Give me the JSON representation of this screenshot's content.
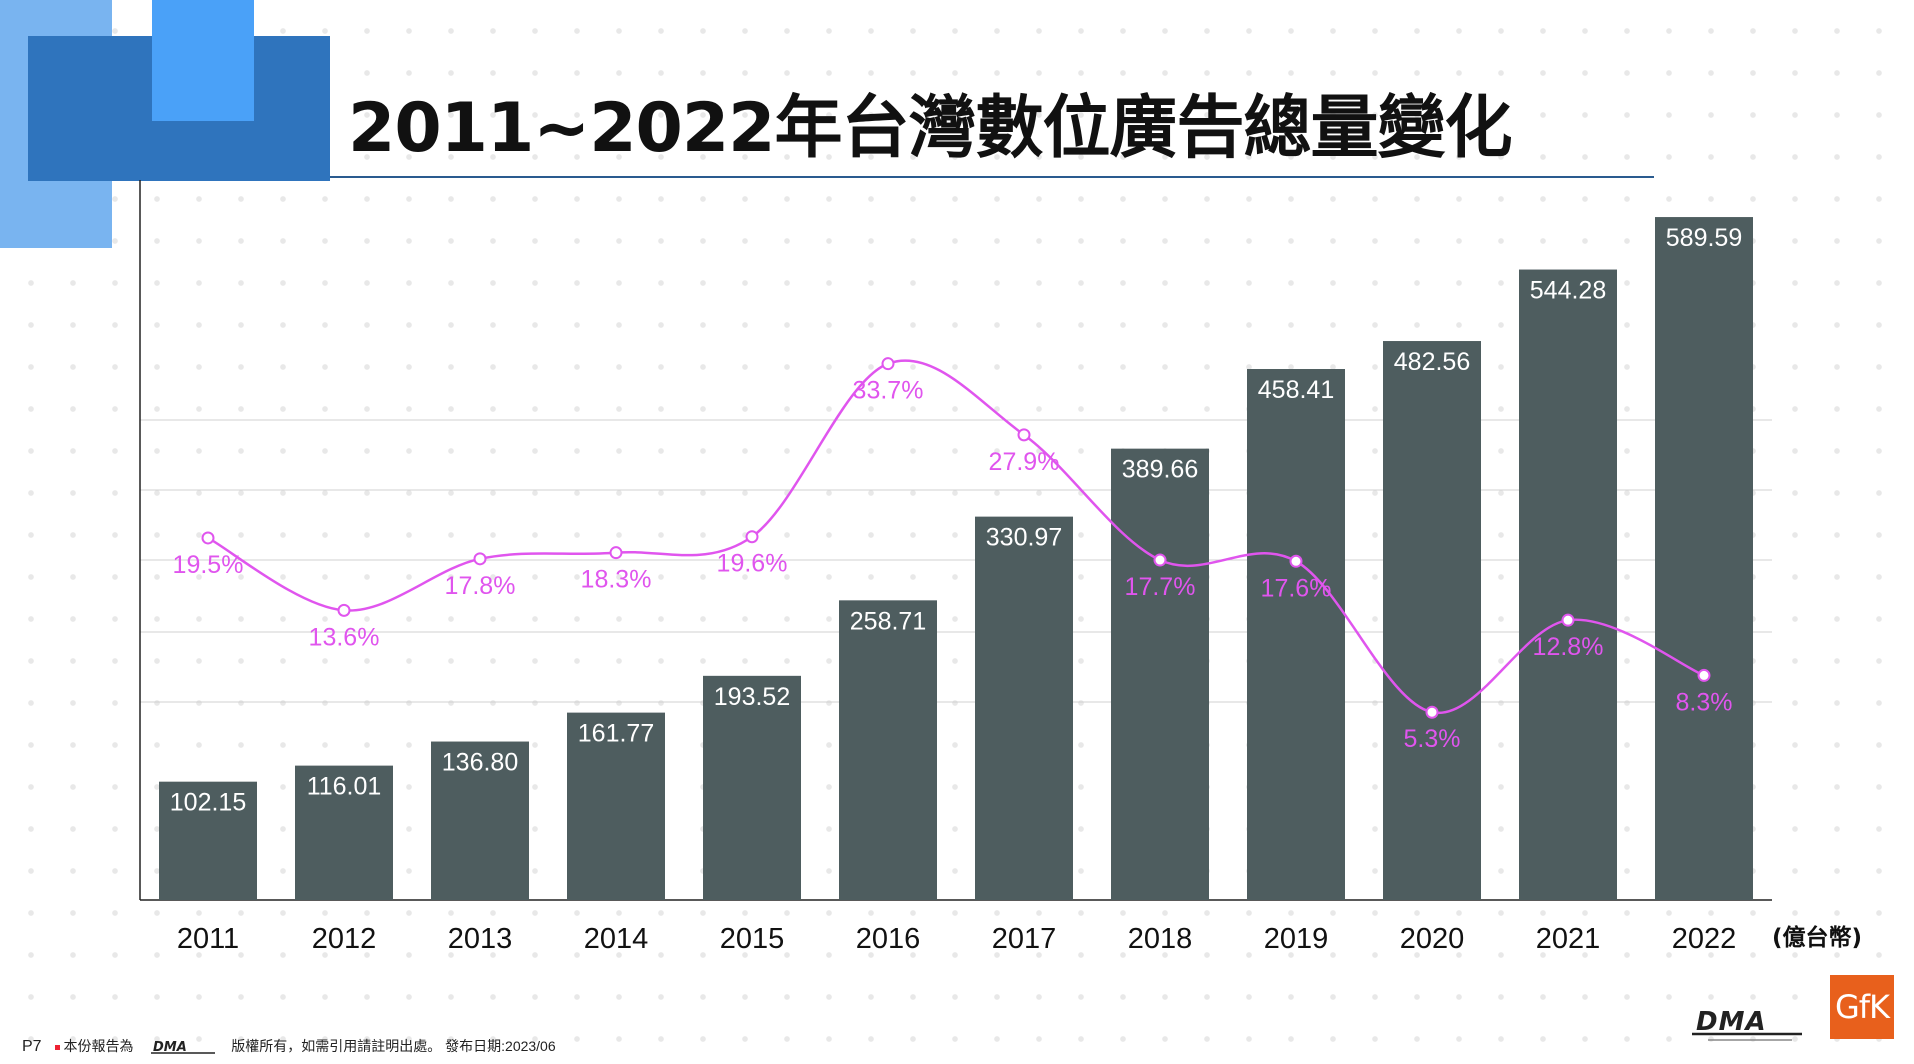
{
  "header": {
    "title": "2011~2022年台灣數位廣告總量變化"
  },
  "chart_data": {
    "type": "bar",
    "categories": [
      "2011",
      "2012",
      "2013",
      "2014",
      "2015",
      "2016",
      "2017",
      "2018",
      "2019",
      "2020",
      "2021",
      "2022"
    ],
    "series": [
      {
        "type": "bar",
        "values": [
          102.15,
          116.01,
          136.8,
          161.77,
          193.52,
          258.71,
          330.97,
          389.66,
          458.41,
          482.56,
          544.28,
          589.59
        ],
        "labels": [
          "102.15",
          "116.01",
          "136.80",
          "161.77",
          "193.52",
          "258.71",
          "330.97",
          "389.66",
          "458.41",
          "482.56",
          "544.28",
          "589.59"
        ]
      },
      {
        "type": "line",
        "values": [
          19.5,
          13.6,
          17.8,
          18.3,
          19.6,
          33.7,
          27.9,
          17.7,
          17.6,
          5.3,
          12.8,
          8.3
        ],
        "labels": [
          "19.5%",
          "13.6%",
          "17.8%",
          "18.3%",
          "19.6%",
          "33.7%",
          "27.9%",
          "17.7%",
          "17.6%",
          "5.3%",
          "12.8%",
          "8.3%"
        ]
      }
    ],
    "unit_label": "(億台幣)",
    "bar_ylim": [
      0,
      600
    ],
    "line_ylim": [
      -10,
      45
    ],
    "grid": true,
    "colors": {
      "bar": "#4e5d5f",
      "line": "#e055ee",
      "grid": "#d0d0d0"
    }
  },
  "footer": {
    "page": "P7",
    "note_prefix": "本份報告為",
    "note_suffix": "版權所有，如需引用請註明出處。 發布日期:2023/06"
  },
  "logos": {
    "dma": "DMA",
    "gfk": "GfK"
  }
}
